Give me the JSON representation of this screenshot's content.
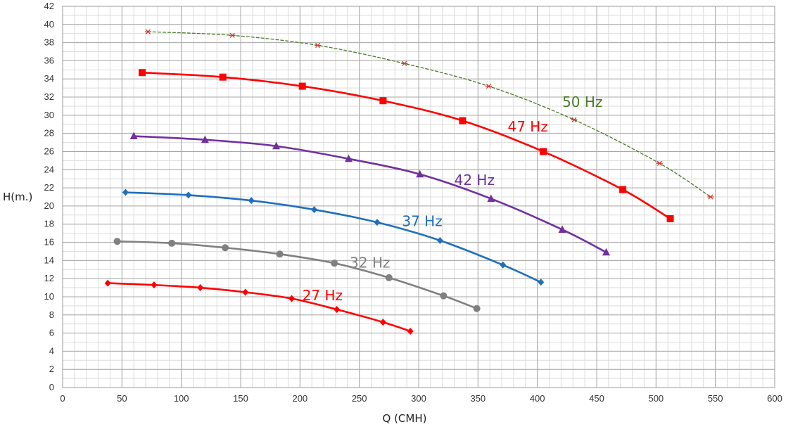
{
  "chart_data": {
    "type": "line",
    "xlabel": "Q (CMH)",
    "ylabel": "H(m.)",
    "xlim": [
      0,
      600
    ],
    "ylim": [
      0,
      42
    ],
    "xticks": [
      0,
      50,
      100,
      150,
      200,
      250,
      300,
      350,
      400,
      450,
      500,
      550,
      600
    ],
    "yticks": [
      0,
      2,
      4,
      6,
      8,
      10,
      12,
      14,
      16,
      18,
      20,
      22,
      24,
      26,
      28,
      30,
      32,
      34,
      36,
      38,
      40,
      42
    ],
    "grid": true,
    "series": [
      {
        "name": "50 Hz",
        "color": "#4a7a2a",
        "marker": "asterisk",
        "line": "dashed",
        "points": [
          [
            72,
            39.2
          ],
          [
            143,
            38.8
          ],
          [
            215,
            37.7
          ],
          [
            288,
            35.7
          ],
          [
            359,
            33.2
          ],
          [
            431,
            29.5
          ],
          [
            503,
            24.7
          ],
          [
            546,
            21.0
          ]
        ]
      },
      {
        "name": "47 Hz",
        "color": "#ff0000",
        "marker": "square",
        "line": "solid",
        "points": [
          [
            67,
            34.7
          ],
          [
            135,
            34.2
          ],
          [
            202,
            33.2
          ],
          [
            270,
            31.6
          ],
          [
            337,
            29.4
          ],
          [
            405,
            26.0
          ],
          [
            472,
            21.8
          ],
          [
            512,
            18.6
          ]
        ]
      },
      {
        "name": "42 Hz",
        "color": "#7030a0",
        "marker": "triangle",
        "line": "solid",
        "points": [
          [
            60,
            27.7
          ],
          [
            120,
            27.3
          ],
          [
            180,
            26.6
          ],
          [
            241,
            25.2
          ],
          [
            301,
            23.5
          ],
          [
            361,
            20.8
          ],
          [
            421,
            17.4
          ],
          [
            458,
            14.9
          ]
        ]
      },
      {
        "name": "37 Hz",
        "color": "#1f6fbf",
        "marker": "diamond",
        "line": "solid",
        "points": [
          [
            53,
            21.5
          ],
          [
            106,
            21.2
          ],
          [
            159,
            20.6
          ],
          [
            212,
            19.6
          ],
          [
            265,
            18.2
          ],
          [
            318,
            16.2
          ],
          [
            371,
            13.5
          ],
          [
            403,
            11.6
          ]
        ]
      },
      {
        "name": "32 Hz",
        "color": "#808080",
        "marker": "circle",
        "line": "solid",
        "points": [
          [
            46,
            16.1
          ],
          [
            92,
            15.9
          ],
          [
            137,
            15.4
          ],
          [
            183,
            14.7
          ],
          [
            229,
            13.7
          ],
          [
            275,
            12.1
          ],
          [
            321,
            10.1
          ],
          [
            349,
            8.7
          ]
        ]
      },
      {
        "name": "27 Hz",
        "color": "#ff0000",
        "marker": "diamond",
        "line": "solid",
        "points": [
          [
            38,
            11.5
          ],
          [
            77,
            11.3
          ],
          [
            116,
            11.0
          ],
          [
            154,
            10.5
          ],
          [
            193,
            9.8
          ],
          [
            231,
            8.6
          ],
          [
            270,
            7.2
          ],
          [
            293,
            6.2
          ]
        ]
      }
    ],
    "labels": [
      {
        "text": "50 Hz",
        "x": 421,
        "y": 30.9,
        "color": "#4a7a2a"
      },
      {
        "text": "47 Hz",
        "x": 375,
        "y": 28.2,
        "color": "#ff0000"
      },
      {
        "text": "42 Hz",
        "x": 330,
        "y": 22.3,
        "color": "#7030a0"
      },
      {
        "text": "37 Hz",
        "x": 286,
        "y": 17.8,
        "color": "#1f6fbf"
      },
      {
        "text": "32 Hz",
        "x": 242,
        "y": 13.2,
        "color": "#808080"
      },
      {
        "text": "27 Hz",
        "x": 202,
        "y": 9.6,
        "color": "#ff0000"
      }
    ]
  }
}
